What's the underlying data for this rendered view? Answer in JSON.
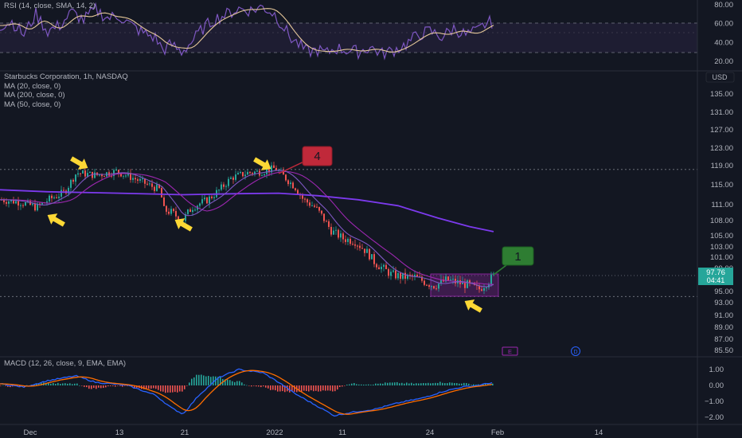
{
  "rsi_panel": {
    "legend": "RSI (14, close, SMA, 14, 2)",
    "ticks": [
      "80.00",
      "60.00",
      "40.00",
      "20.00"
    ],
    "tick_values": [
      80,
      60,
      40,
      20
    ],
    "overbought": 70,
    "oversold": 30,
    "mid": 50
  },
  "price_panel": {
    "title": "Starbucks Corporation, 1h, NASDAQ",
    "indicators": [
      "MA (20, close, 0)",
      "MA (200, close, 0)",
      "MA (50, close, 0)"
    ],
    "currency": "USD",
    "ticks": [
      "135.00",
      "131.00",
      "127.00",
      "123.00",
      "119.00",
      "115.00",
      "111.00",
      "108.00",
      "105.00",
      "103.00",
      "101.00",
      "99.00",
      "95.00",
      "93.00",
      "91.00",
      "89.00",
      "87.00",
      "85.50"
    ],
    "tick_values": [
      135,
      131,
      127,
      123,
      119,
      115,
      111,
      108,
      105,
      103,
      101,
      99,
      95,
      93,
      91,
      89,
      87,
      85.5
    ],
    "last_price": "97.76",
    "countdown": "04:41",
    "last_price_value": 97.76,
    "resistance_level": 118.2,
    "support_level": 94.1,
    "annotations": {
      "box4": "4",
      "box1": "1",
      "marker_e": "E",
      "marker_d": "D"
    }
  },
  "macd_panel": {
    "legend": "MACD (12, 26, close, 9, EMA, EMA)",
    "ticks": [
      "1.00",
      "0.00",
      "−1.00",
      "−2.00"
    ],
    "tick_values": [
      1,
      0,
      -1,
      -2
    ]
  },
  "time_axis": [
    "Dec",
    "13",
    "21",
    "2022",
    "11",
    "24",
    "Feb",
    "14"
  ],
  "colors": {
    "background": "#131722",
    "grid": "#1e222d",
    "up": "#26a69a",
    "down": "#ef5350",
    "ma20": "#7e57c2",
    "ma50": "#9c27b0",
    "ma200": "#7c3aed",
    "rsi": "#7e57c2",
    "rsi_sma": "#e6c89a",
    "macd": "#2962ff",
    "signal": "#ff6d00",
    "annot_red": "#c0293a",
    "annot_green": "#2e7d32",
    "arrow": "#fdd835"
  },
  "chart_data": {
    "type": "line",
    "title": "Starbucks Corporation, 1h, NASDAQ",
    "xlabel": "",
    "ylabel": "",
    "x": [
      "Dec",
      "13",
      "21",
      "2022",
      "11",
      "24",
      "Feb"
    ],
    "ylim": [
      85.5,
      137
    ],
    "series": [
      {
        "name": "MA (200, close, 0)",
        "values": [
          114,
          113.5,
          113.2,
          113.3,
          112.8,
          108.5,
          105.8
        ]
      },
      {
        "name": "MA (50, close, 0)",
        "values": [
          112,
          115.5,
          113.5,
          116.5,
          107,
          98.5,
          97
        ]
      },
      {
        "name": "MA (20, close, 0)",
        "values": [
          112,
          116.5,
          112,
          117.5,
          104,
          97,
          97
        ]
      }
    ],
    "grid": false,
    "legend": "top-left"
  }
}
